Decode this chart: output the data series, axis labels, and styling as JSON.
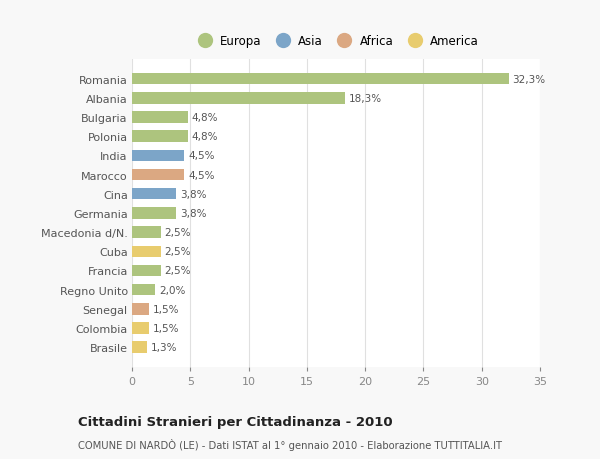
{
  "categories": [
    "Romania",
    "Albania",
    "Bulgaria",
    "Polonia",
    "India",
    "Marocco",
    "Cina",
    "Germania",
    "Macedonia d/N.",
    "Cuba",
    "Francia",
    "Regno Unito",
    "Senegal",
    "Colombia",
    "Brasile"
  ],
  "values": [
    32.3,
    18.3,
    4.8,
    4.8,
    4.5,
    4.5,
    3.8,
    3.8,
    2.5,
    2.5,
    2.5,
    2.0,
    1.5,
    1.5,
    1.3
  ],
  "labels": [
    "32,3%",
    "18,3%",
    "4,8%",
    "4,8%",
    "4,5%",
    "4,5%",
    "3,8%",
    "3,8%",
    "2,5%",
    "2,5%",
    "2,5%",
    "2,0%",
    "1,5%",
    "1,5%",
    "1,3%"
  ],
  "colors": [
    "#adc47e",
    "#adc47e",
    "#adc47e",
    "#adc47e",
    "#7ca5c8",
    "#dba882",
    "#7ca5c8",
    "#adc47e",
    "#adc47e",
    "#e8cc6e",
    "#adc47e",
    "#adc47e",
    "#dba882",
    "#e8cc6e",
    "#e8cc6e"
  ],
  "legend_labels": [
    "Europa",
    "Asia",
    "Africa",
    "America"
  ],
  "legend_colors": [
    "#adc47e",
    "#7ca5c8",
    "#dba882",
    "#e8cc6e"
  ],
  "xlim": [
    0,
    35
  ],
  "xticks": [
    0,
    5,
    10,
    15,
    20,
    25,
    30,
    35
  ],
  "title": "Cittadini Stranieri per Cittadinanza - 2010",
  "subtitle": "COMUNE DI NARDÒ (LE) - Dati ISTAT al 1° gennaio 2010 - Elaborazione TUTTITALIA.IT",
  "background_color": "#f8f8f8",
  "plot_bg_color": "#ffffff",
  "grid_color": "#e0e0e0",
  "bar_height": 0.6,
  "label_fontsize": 7.5,
  "ytick_fontsize": 8.0,
  "xtick_fontsize": 8.0
}
